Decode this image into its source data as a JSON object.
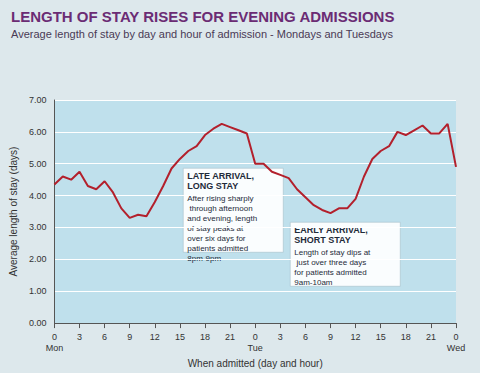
{
  "chart_data": {
    "type": "line",
    "title": "LENGTH OF STAY RISES FOR EVENING ADMISSIONS",
    "subtitle": "Average length of stay by day and hour of admission - Mondays and Tuesdays",
    "x_label": "When admitted (day and hour)",
    "y_label": "Average length of stay (days)",
    "categories": [
      "0\nMon",
      null,
      null,
      "3",
      null,
      null,
      "6",
      null,
      null,
      "9",
      null,
      null,
      "12",
      null,
      null,
      "15",
      null,
      null,
      "18",
      null,
      null,
      "21",
      null,
      null,
      "0\nTue",
      null,
      null,
      "3",
      null,
      null,
      "6",
      null,
      null,
      "9",
      null,
      null,
      "12",
      null,
      null,
      "15",
      null,
      null,
      "18",
      null,
      null,
      "21",
      null,
      null,
      "0\nWed"
    ],
    "values": [
      4.35,
      4.6,
      4.5,
      4.75,
      4.3,
      4.2,
      4.45,
      4.1,
      3.6,
      3.3,
      3.4,
      3.35,
      3.8,
      4.3,
      4.85,
      5.15,
      5.4,
      5.55,
      5.9,
      6.1,
      6.25,
      6.15,
      6.05,
      5.95,
      5.0,
      5.0,
      4.75,
      4.65,
      4.55,
      4.2,
      3.95,
      3.7,
      3.55,
      3.45,
      3.6,
      3.6,
      3.9,
      4.6,
      5.15,
      5.4,
      5.55,
      6.0,
      5.9,
      6.05,
      6.2,
      5.95,
      5.95,
      6.25,
      4.9
    ],
    "color": "#b3202c",
    "ylim": [
      0,
      7
    ],
    "yticks": [
      {
        "value": 0,
        "label": "0.00"
      },
      {
        "value": 1,
        "label": "1.00"
      },
      {
        "value": 2,
        "label": "2.00"
      },
      {
        "value": 3,
        "label": "3.00"
      },
      {
        "value": 4,
        "label": "4.00"
      },
      {
        "value": 5,
        "label": "5.00"
      },
      {
        "value": 6,
        "label": "6.00"
      },
      {
        "value": 7,
        "label": "7.00"
      }
    ],
    "grid": true,
    "annotations": [
      {
        "title": "LATE ARRIVAL, LONG STAY",
        "text": "After rising sharply through afternoon and evening, length of stay peaks at over six days for patients admitted 8pm-9pm"
      },
      {
        "title": "EARLY ARRIVAL, SHORT STAY",
        "text": "Length of stay dips at just over three days for patients admitted 9am-10am"
      }
    ]
  }
}
